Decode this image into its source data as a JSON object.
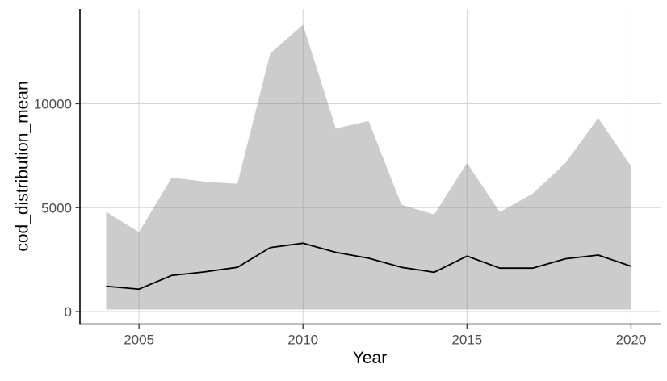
{
  "chart_data": {
    "type": "area",
    "title": "",
    "xlabel": "Year",
    "ylabel": "cod_distribution_mean",
    "x": [
      2004,
      2005,
      2006,
      2007,
      2008,
      2009,
      2010,
      2011,
      2012,
      2013,
      2014,
      2015,
      2016,
      2017,
      2018,
      2019,
      2020
    ],
    "series": [
      {
        "name": "ribbon_upper",
        "values": [
          4800,
          3820,
          6450,
          6250,
          6150,
          12420,
          13800,
          8810,
          9170,
          5140,
          4670,
          7150,
          4790,
          5670,
          7150,
          9310,
          7000
        ]
      },
      {
        "name": "ribbon_lower",
        "values": [
          100,
          100,
          100,
          100,
          100,
          100,
          100,
          100,
          100,
          100,
          100,
          100,
          100,
          100,
          100,
          100,
          100
        ]
      },
      {
        "name": "cod_distribution_mean",
        "values": [
          1220,
          1080,
          1740,
          1910,
          2130,
          3080,
          3290,
          2850,
          2570,
          2130,
          1890,
          2670,
          2090,
          2090,
          2540,
          2720,
          2180
        ]
      }
    ],
    "x_ticks": {
      "values": [
        2005,
        2010,
        2015,
        2020
      ],
      "labels": [
        "2005",
        "2010",
        "2015",
        "2020"
      ]
    },
    "y_ticks": {
      "values": [
        0,
        5000,
        10000
      ],
      "labels": [
        "0",
        "5000",
        "10000"
      ]
    },
    "xlim": [
      2003.2,
      2020.9
    ],
    "ylim": [
      -600,
      14560
    ],
    "grid": true,
    "legend": false,
    "colors": {
      "ribbon_fill": "rgba(128,128,128,0.40)",
      "line": "#000000",
      "grid": "#D5D5D5",
      "axis": "#000000",
      "tick": "#333333",
      "tick_label": "#4D4D4D",
      "background": "#FFFFFF"
    }
  }
}
